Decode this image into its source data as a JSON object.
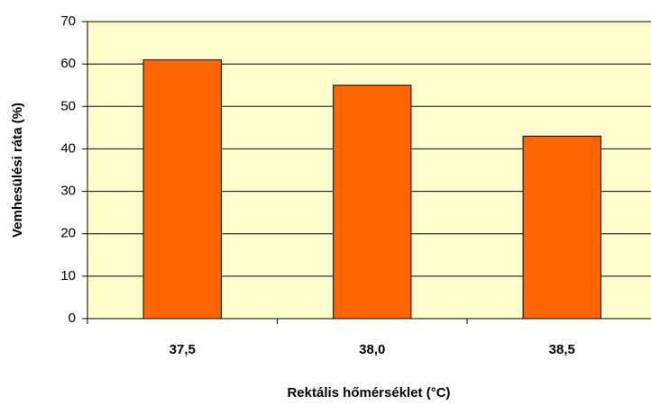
{
  "chart_data": {
    "type": "bar",
    "x_label": "Rektális hőmérséklet (°C)",
    "y_label": "Vemhesülési ráta (%)",
    "categories": [
      "37,5",
      "38,0",
      "38,5"
    ],
    "values": [
      61,
      55,
      43
    ],
    "color": "#ff6600",
    "ylim": [
      0,
      70
    ],
    "yticks": [
      0,
      10,
      20,
      30,
      40,
      50,
      60,
      70
    ],
    "grid": true
  }
}
